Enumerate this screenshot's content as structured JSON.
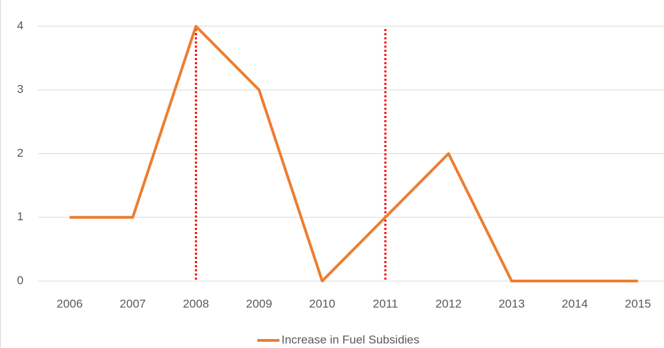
{
  "chart_data": {
    "type": "line",
    "categories": [
      "2006",
      "2007",
      "2008",
      "2009",
      "2010",
      "2011",
      "2012",
      "2013",
      "2014",
      "2015"
    ],
    "series": [
      {
        "name": "Increase in Fuel Subsidies",
        "color": "#ed7d31",
        "values": [
          1,
          1,
          4,
          3,
          0,
          1,
          2,
          0,
          0,
          0
        ]
      }
    ],
    "ylim": [
      0,
      4
    ],
    "yticks": [
      0,
      1,
      2,
      3,
      4
    ],
    "grid": true,
    "reference_lines": {
      "categories": [
        "2008",
        "2011"
      ],
      "color": "#ff0000"
    },
    "legend": "bottom"
  }
}
